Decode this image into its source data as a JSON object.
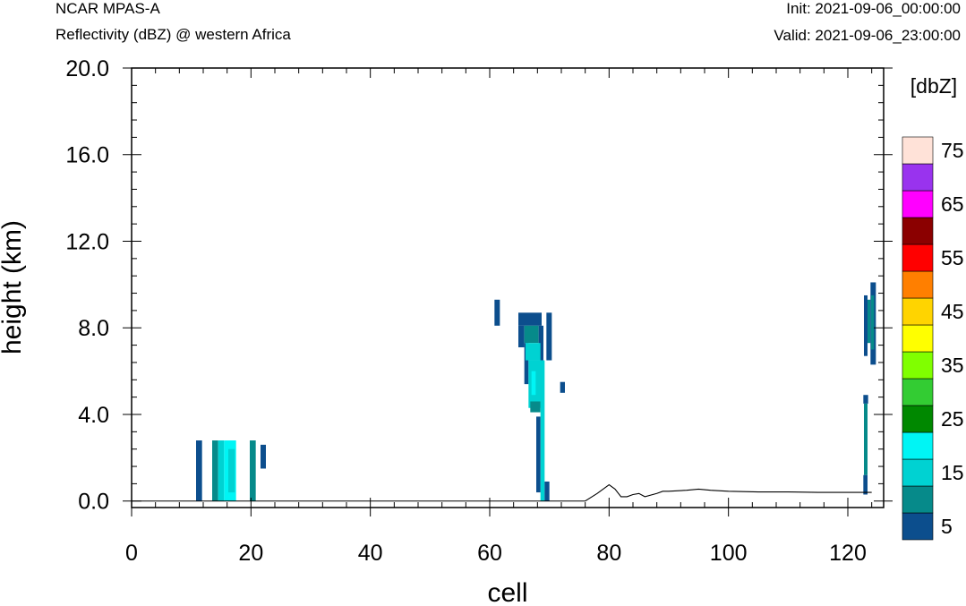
{
  "header": {
    "model": "NCAR MPAS-A",
    "field": "Reflectivity (dBZ) @ western Africa",
    "init": "Init: 2021-09-06_00:00:00",
    "valid": "Valid: 2021-09-06_23:00:00"
  },
  "chart_data": {
    "type": "heatmap",
    "xlabel": "cell",
    "ylabel": "height (km)",
    "xlim": [
      0,
      126
    ],
    "ylim": [
      -0.3,
      20.0
    ],
    "x_ticks": [
      0,
      20,
      40,
      60,
      80,
      100,
      120
    ],
    "y_ticks": [
      0.0,
      4.0,
      8.0,
      12.0,
      16.0,
      20.0
    ],
    "y_tick_labels": [
      "0.0",
      "4.0",
      "8.0",
      "12.0",
      "16.0",
      "20.0"
    ],
    "colorbar": {
      "unit": "[dbZ]",
      "levels": [
        5,
        10,
        15,
        20,
        25,
        30,
        35,
        40,
        45,
        50,
        55,
        60,
        65,
        70,
        75
      ],
      "labels": [
        "5",
        "15",
        "25",
        "35",
        "45",
        "55",
        "65",
        "75"
      ],
      "colors": [
        "#0c4e8d",
        "#068a8a",
        "#00d2d2",
        "#00f5f5",
        "#008800",
        "#33cc33",
        "#80ff00",
        "#ffff00",
        "#ffd400",
        "#ff7f00",
        "#ff0000",
        "#8b0000",
        "#ff00ff",
        "#9933ee",
        "#ffe2d8"
      ]
    },
    "cells": [
      {
        "x0": 10.8,
        "x1": 11.8,
        "y0": 0.0,
        "y1": 2.8,
        "dbz": 5
      },
      {
        "x0": 13.5,
        "x1": 14.5,
        "y0": 0.0,
        "y1": 2.8,
        "dbz": 10
      },
      {
        "x0": 14.5,
        "x1": 15.5,
        "y0": 0.0,
        "y1": 2.8,
        "dbz": 15
      },
      {
        "x0": 15.5,
        "x1": 17.5,
        "y0": 0.0,
        "y1": 2.8,
        "dbz": 20
      },
      {
        "x0": 16.2,
        "x1": 17.3,
        "y0": 0.4,
        "y1": 2.4,
        "dbz": 15
      },
      {
        "x0": 19.8,
        "x1": 20.8,
        "y0": 0.0,
        "y1": 2.8,
        "dbz": 10
      },
      {
        "x0": 21.6,
        "x1": 22.5,
        "y0": 1.5,
        "y1": 2.6,
        "dbz": 5
      },
      {
        "x0": 60.8,
        "x1": 61.7,
        "y0": 8.1,
        "y1": 9.3,
        "dbz": 5
      },
      {
        "x0": 64.8,
        "x1": 68.7,
        "y0": 8.1,
        "y1": 8.7,
        "dbz": 5
      },
      {
        "x0": 64.8,
        "x1": 65.8,
        "y0": 7.1,
        "y1": 8.1,
        "dbz": 5
      },
      {
        "x0": 65.8,
        "x1": 68.2,
        "y0": 7.3,
        "y1": 8.1,
        "dbz": 10
      },
      {
        "x0": 68.2,
        "x1": 69.0,
        "y0": 6.5,
        "y1": 8.1,
        "dbz": 5
      },
      {
        "x0": 69.5,
        "x1": 70.4,
        "y0": 6.5,
        "y1": 8.7,
        "dbz": 5
      },
      {
        "x0": 65.8,
        "x1": 66.5,
        "y0": 5.4,
        "y1": 7.3,
        "dbz": 5
      },
      {
        "x0": 66.0,
        "x1": 68.5,
        "y0": 6.5,
        "y1": 7.3,
        "dbz": 15
      },
      {
        "x0": 66.5,
        "x1": 68.8,
        "y0": 4.3,
        "y1": 6.5,
        "dbz": 15
      },
      {
        "x0": 67.0,
        "x1": 67.7,
        "y0": 4.9,
        "y1": 6.0,
        "dbz": 20
      },
      {
        "x0": 66.8,
        "x1": 68.5,
        "y0": 4.1,
        "y1": 4.6,
        "dbz": 10
      },
      {
        "x0": 68.5,
        "x1": 69.2,
        "y0": 0.0,
        "y1": 6.5,
        "dbz": 15
      },
      {
        "x0": 67.8,
        "x1": 68.5,
        "y0": 0.4,
        "y1": 3.9,
        "dbz": 5
      },
      {
        "x0": 69.2,
        "x1": 70.0,
        "y0": 0.0,
        "y1": 0.9,
        "dbz": 5
      },
      {
        "x0": 71.8,
        "x1": 72.6,
        "y0": 5.0,
        "y1": 5.5,
        "dbz": 5
      },
      {
        "x0": 122.7,
        "x1": 123.3,
        "y0": 6.7,
        "y1": 9.5,
        "dbz": 5
      },
      {
        "x0": 123.3,
        "x1": 123.8,
        "y0": 7.3,
        "y1": 9.3,
        "dbz": 10
      },
      {
        "x0": 123.8,
        "x1": 124.7,
        "y0": 6.3,
        "y1": 10.1,
        "dbz": 5
      },
      {
        "x0": 123.9,
        "x1": 124.4,
        "y0": 7.0,
        "y1": 9.5,
        "dbz": 10
      },
      {
        "x0": 122.6,
        "x1": 123.4,
        "y0": 4.5,
        "y1": 4.9,
        "dbz": 5
      },
      {
        "x0": 122.7,
        "x1": 123.3,
        "y0": 1.2,
        "y1": 4.5,
        "dbz": 10
      },
      {
        "x0": 122.6,
        "x1": 123.3,
        "y0": 0.3,
        "y1": 1.2,
        "dbz": 5
      }
    ],
    "terrain": {
      "x": [
        0,
        10,
        20,
        30,
        40,
        50,
        60,
        70,
        76,
        78,
        79,
        80,
        81,
        82,
        83,
        84,
        85,
        86,
        88,
        89,
        90,
        93,
        95,
        97,
        100,
        105,
        110,
        115,
        120,
        124
      ],
      "y": [
        0.0,
        0.0,
        0.0,
        0.0,
        0.0,
        0.0,
        0.0,
        0.0,
        0.0,
        0.35,
        0.55,
        0.75,
        0.55,
        0.2,
        0.2,
        0.3,
        0.35,
        0.2,
        0.35,
        0.45,
        0.45,
        0.5,
        0.55,
        0.5,
        0.45,
        0.42,
        0.42,
        0.4,
        0.4,
        0.4
      ]
    }
  }
}
